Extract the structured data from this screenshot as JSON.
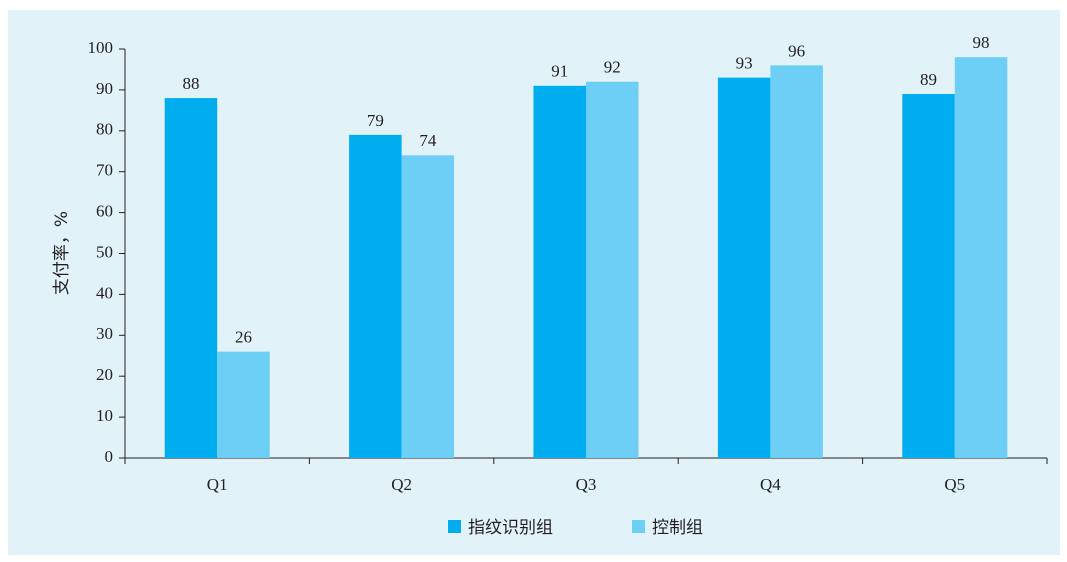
{
  "chart_data": {
    "type": "bar",
    "ylabel": "支付率，%",
    "categories": [
      "Q1",
      "Q2",
      "Q3",
      "Q4",
      "Q5"
    ],
    "series": [
      {
        "name": "指纹识别组",
        "color": "#00aeef",
        "values": [
          88,
          79,
          91,
          93,
          89
        ]
      },
      {
        "name": "控制组",
        "color": "#6dcff6",
        "values": [
          26,
          74,
          92,
          96,
          98
        ]
      }
    ],
    "ylim": [
      0,
      100
    ],
    "yticks": [
      0,
      10,
      20,
      30,
      40,
      50,
      60,
      70,
      80,
      90,
      100
    ],
    "grid": false,
    "legend": "bottom"
  }
}
